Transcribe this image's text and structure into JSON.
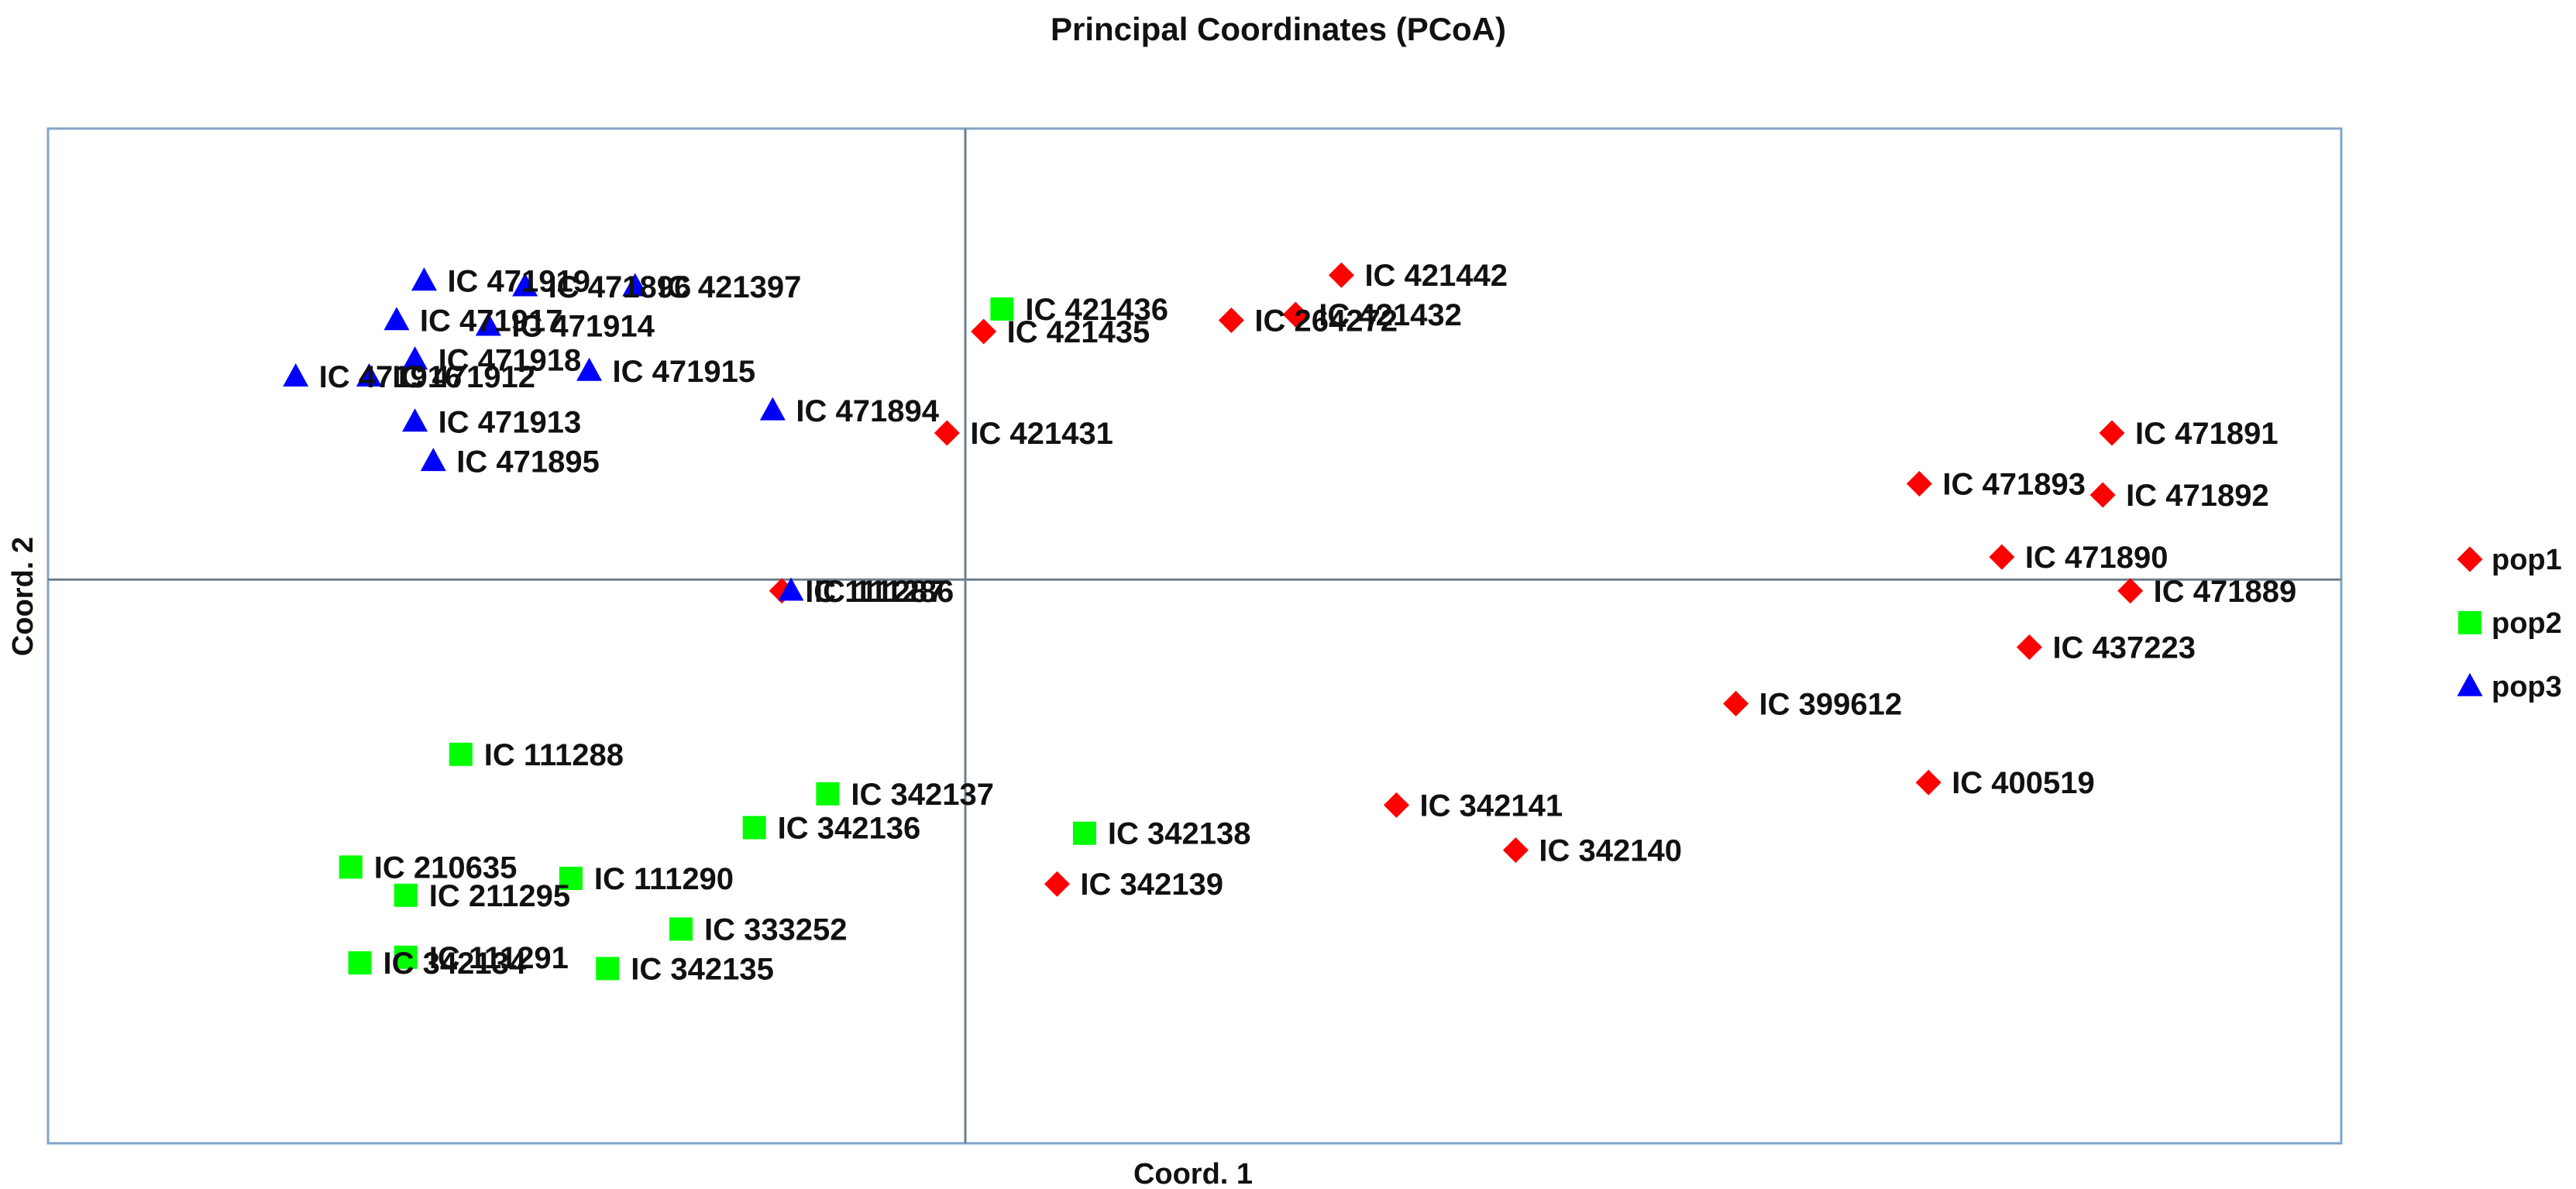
{
  "chart_data": {
    "type": "scatter",
    "title": "Principal Coordinates (PCoA)",
    "xlabel": "Coord. 1",
    "ylabel": "Coord. 2",
    "xlim": [
      -1.0,
      1.5
    ],
    "ylim": [
      -1.0,
      0.8
    ],
    "legend_position": "right",
    "series": [
      {
        "name": "pop1",
        "marker": "diamond",
        "color": "#ff0000",
        "points": [
          {
            "label": "IC 421442",
            "x": 0.41,
            "y": 0.54
          },
          {
            "label": "IC 421432",
            "x": 0.36,
            "y": 0.47
          },
          {
            "label": "IC 264272",
            "x": 0.29,
            "y": 0.46
          },
          {
            "label": "IC 421435",
            "x": 0.02,
            "y": 0.44
          },
          {
            "label": "IC 421431",
            "x": -0.02,
            "y": 0.26
          },
          {
            "label": "IC 471891",
            "x": 1.25,
            "y": 0.26
          },
          {
            "label": "IC 471893",
            "x": 1.04,
            "y": 0.17
          },
          {
            "label": "IC 471892",
            "x": 1.24,
            "y": 0.15
          },
          {
            "label": "IC 471890",
            "x": 1.13,
            "y": 0.04
          },
          {
            "label": "IC 471889",
            "x": 1.27,
            "y": -0.02
          },
          {
            "label": "IC 437223",
            "x": 1.16,
            "y": -0.12
          },
          {
            "label": "IC 399612",
            "x": 0.84,
            "y": -0.22
          },
          {
            "label": "IC 400519",
            "x": 1.05,
            "y": -0.36
          },
          {
            "label": "IC 342141",
            "x": 0.47,
            "y": -0.4
          },
          {
            "label": "IC 342140",
            "x": 0.6,
            "y": -0.48
          },
          {
            "label": "IC 342139",
            "x": 0.1,
            "y": -0.54
          },
          {
            "label": "IC 111287",
            "x": -0.2,
            "y": -0.02
          }
        ]
      },
      {
        "name": "pop2",
        "marker": "square",
        "color": "#00ff00",
        "points": [
          {
            "label": "IC 421436",
            "x": 0.04,
            "y": 0.48
          },
          {
            "label": "IC 111288",
            "x": -0.55,
            "y": -0.31
          },
          {
            "label": "IC 342137",
            "x": -0.15,
            "y": -0.38
          },
          {
            "label": "IC 342136",
            "x": -0.23,
            "y": -0.44
          },
          {
            "label": "IC 342138",
            "x": 0.13,
            "y": -0.45
          },
          {
            "label": "IC 210635",
            "x": -0.67,
            "y": -0.51
          },
          {
            "label": "IC 111290",
            "x": -0.43,
            "y": -0.53
          },
          {
            "label": "IC 211295",
            "x": -0.61,
            "y": -0.56
          },
          {
            "label": "IC 333252",
            "x": -0.31,
            "y": -0.62
          },
          {
            "label": "IC 111291",
            "x": -0.61,
            "y": -0.67
          },
          {
            "label": "IC 342134",
            "x": -0.66,
            "y": -0.68
          },
          {
            "label": "IC 342135",
            "x": -0.39,
            "y": -0.69
          }
        ]
      },
      {
        "name": "pop3",
        "marker": "triangle",
        "color": "#0000ff",
        "points": [
          {
            "label": "IC 471919",
            "x": -0.59,
            "y": 0.53
          },
          {
            "label": "IC 421397",
            "x": -0.36,
            "y": 0.52
          },
          {
            "label": "IC 471896",
            "x": -0.48,
            "y": 0.52
          },
          {
            "label": "IC 471917",
            "x": -0.62,
            "y": 0.46
          },
          {
            "label": "IC 471914",
            "x": -0.52,
            "y": 0.45
          },
          {
            "label": "IC 471915",
            "x": -0.41,
            "y": 0.37
          },
          {
            "label": "IC 471916",
            "x": -0.73,
            "y": 0.36
          },
          {
            "label": "IC 471912",
            "x": -0.65,
            "y": 0.36
          },
          {
            "label": "IC 471918",
            "x": -0.6,
            "y": 0.39
          },
          {
            "label": "IC 471894",
            "x": -0.21,
            "y": 0.3
          },
          {
            "label": "IC 471913",
            "x": -0.6,
            "y": 0.28
          },
          {
            "label": "IC 471895",
            "x": -0.58,
            "y": 0.21
          },
          {
            "label": "IC 111286",
            "x": -0.19,
            "y": -0.02
          }
        ]
      }
    ]
  }
}
